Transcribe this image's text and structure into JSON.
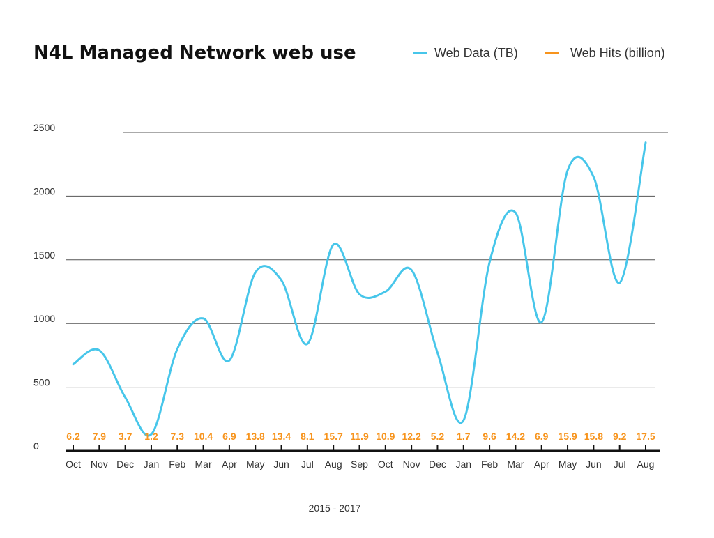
{
  "chart_data": {
    "type": "line",
    "title": "N4L Managed Network web use",
    "xlabel": "2015 - 2017",
    "ylabel": "",
    "ylim": [
      0,
      2500
    ],
    "yticks": [
      0,
      500,
      1000,
      1500,
      2000,
      2500
    ],
    "grid": true,
    "legend_position": "top-right",
    "categories": [
      "Oct",
      "Nov",
      "Dec",
      "Jan",
      "Feb",
      "Mar",
      "Apr",
      "May",
      "Jun",
      "Jul",
      "Aug",
      "Sep",
      "Oct",
      "Nov",
      "Dec",
      "Jan",
      "Feb",
      "Mar",
      "Apr",
      "May",
      "Jun",
      "Jul",
      "Aug"
    ],
    "series": [
      {
        "name": "Web Data (TB)",
        "color": "#47c6ea",
        "values": [
          680,
          790,
          420,
          130,
          800,
          1040,
          710,
          1400,
          1340,
          840,
          1620,
          1230,
          1250,
          1420,
          770,
          240,
          1480,
          1870,
          1010,
          2200,
          2150,
          1320,
          2420
        ]
      },
      {
        "name": "Web Hits (billion)",
        "color": "#f7941d",
        "values": [
          "6.2",
          "7.9",
          "3.7",
          "1.2",
          "7.3",
          "10.4",
          "6.9",
          "13.8",
          "13.4",
          "8.1",
          "15.7",
          "11.9",
          "10.9",
          "12.2",
          "5.2",
          "1.7",
          "9.6",
          "14.2",
          "6.9",
          "15.9",
          "15.8",
          "9.2",
          "17.5"
        ]
      }
    ]
  }
}
